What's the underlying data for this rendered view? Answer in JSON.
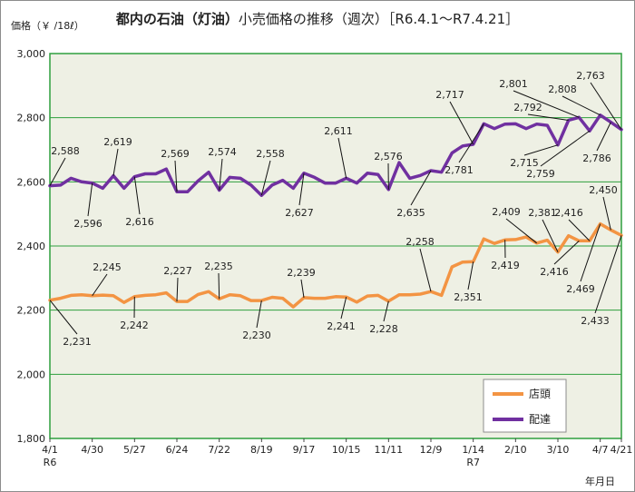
{
  "chart_data": {
    "type": "line",
    "title": "都内の石油（灯油）",
    "subtitle": "小売価格の推移（週次）［R6.4.1～R7.4.21］",
    "ylabel": "価格（￥ /18ℓ）",
    "xlabel": "年月日",
    "ylim": [
      1800,
      3000
    ],
    "yticks": [
      "3,000",
      "2,800",
      "2,600",
      "2,400",
      "2,200",
      "2,000",
      "1,800"
    ],
    "ytick_values": [
      3000,
      2800,
      2600,
      2400,
      2200,
      2000,
      1800
    ],
    "grid": true,
    "legend_position": "bottom-right",
    "xtick_labels": [
      {
        "i": 0,
        "label": "4/1",
        "sub": "R6"
      },
      {
        "i": 4,
        "label": "4/30",
        "sub": ""
      },
      {
        "i": 8,
        "label": "5/27",
        "sub": ""
      },
      {
        "i": 12,
        "label": "6/24",
        "sub": ""
      },
      {
        "i": 16,
        "label": "7/22",
        "sub": ""
      },
      {
        "i": 20,
        "label": "8/19",
        "sub": ""
      },
      {
        "i": 24,
        "label": "9/17",
        "sub": ""
      },
      {
        "i": 28,
        "label": "10/15",
        "sub": ""
      },
      {
        "i": 32,
        "label": "11/11",
        "sub": ""
      },
      {
        "i": 36,
        "label": "12/9",
        "sub": ""
      },
      {
        "i": 40,
        "label": "1/14",
        "sub": "R7"
      },
      {
        "i": 44,
        "label": "2/10",
        "sub": ""
      },
      {
        "i": 48,
        "label": "3/10",
        "sub": ""
      },
      {
        "i": 52,
        "label": "4/7",
        "sub": ""
      },
      {
        "i": 54,
        "label": "4/21",
        "sub": ""
      }
    ],
    "series": [
      {
        "name": "店頭",
        "color": "#f39443",
        "values": [
          2231,
          2237,
          2246,
          2248,
          2245,
          2247,
          2245,
          2224,
          2242,
          2246,
          2248,
          2254,
          2227,
          2227,
          2249,
          2258,
          2235,
          2248,
          2245,
          2230,
          2230,
          2240,
          2237,
          2210,
          2239,
          2237,
          2237,
          2242,
          2241,
          2225,
          2244,
          2246,
          2228,
          2248,
          2248,
          2250,
          2258,
          2246,
          2335,
          2350,
          2351,
          2422,
          2408,
          2419,
          2420,
          2428,
          2409,
          2418,
          2381,
          2432,
          2416,
          2416,
          2469,
          2450,
          2433
        ]
      },
      {
        "name": "配達",
        "color": "#7030a0",
        "values": [
          2588,
          2590,
          2611,
          2600,
          2596,
          2580,
          2619,
          2580,
          2616,
          2625,
          2625,
          2640,
          2569,
          2569,
          2603,
          2630,
          2574,
          2614,
          2611,
          2590,
          2558,
          2590,
          2605,
          2580,
          2627,
          2614,
          2596,
          2596,
          2611,
          2596,
          2627,
          2623,
          2576,
          2660,
          2611,
          2620,
          2635,
          2630,
          2690,
          2712,
          2717,
          2781,
          2766,
          2780,
          2781,
          2766,
          2780,
          2776,
          2715,
          2792,
          2801,
          2759,
          2808,
          2786,
          2763
        ]
      }
    ],
    "annotations": [
      {
        "series": 0,
        "i": 0,
        "label": "2,231"
      },
      {
        "series": 0,
        "i": 4,
        "label": "2,245"
      },
      {
        "series": 0,
        "i": 8,
        "label": "2,242"
      },
      {
        "series": 0,
        "i": 12,
        "label": "2,227"
      },
      {
        "series": 0,
        "i": 16,
        "label": "2,235"
      },
      {
        "series": 0,
        "i": 20,
        "label": "2,230"
      },
      {
        "series": 0,
        "i": 24,
        "label": "2,239"
      },
      {
        "series": 0,
        "i": 28,
        "label": "2,241"
      },
      {
        "series": 0,
        "i": 32,
        "label": "2,228"
      },
      {
        "series": 0,
        "i": 36,
        "label": "2,258"
      },
      {
        "series": 0,
        "i": 40,
        "label": "2,351"
      },
      {
        "series": 0,
        "i": 43,
        "label": "2,419"
      },
      {
        "series": 0,
        "i": 46,
        "label": "2,409"
      },
      {
        "series": 0,
        "i": 48,
        "label": "2,381"
      },
      {
        "series": 0,
        "i": 50,
        "label": "2,416"
      },
      {
        "series": 0,
        "i": 51,
        "label": "2,416"
      },
      {
        "series": 0,
        "i": 52,
        "label": "2,469"
      },
      {
        "series": 0,
        "i": 53,
        "label": "2,450"
      },
      {
        "series": 0,
        "i": 54,
        "label": "2,433"
      },
      {
        "series": 1,
        "i": 0,
        "label": "2,588"
      },
      {
        "series": 1,
        "i": 4,
        "label": "2,596"
      },
      {
        "series": 1,
        "i": 6,
        "label": "2,619"
      },
      {
        "series": 1,
        "i": 8,
        "label": "2,616"
      },
      {
        "series": 1,
        "i": 12,
        "label": "2,569"
      },
      {
        "series": 1,
        "i": 16,
        "label": "2,574"
      },
      {
        "series": 1,
        "i": 20,
        "label": "2,558"
      },
      {
        "series": 1,
        "i": 24,
        "label": "2,627"
      },
      {
        "series": 1,
        "i": 28,
        "label": "2,611"
      },
      {
        "series": 1,
        "i": 32,
        "label": "2,576"
      },
      {
        "series": 1,
        "i": 36,
        "label": "2,635"
      },
      {
        "series": 1,
        "i": 40,
        "label": "2,717"
      },
      {
        "series": 1,
        "i": 41,
        "label": "2,781"
      },
      {
        "series": 1,
        "i": 48,
        "label": "2,715"
      },
      {
        "series": 1,
        "i": 49,
        "label": "2,792"
      },
      {
        "series": 1,
        "i": 50,
        "label": "2,801"
      },
      {
        "series": 1,
        "i": 51,
        "label": "2,759"
      },
      {
        "series": 1,
        "i": 52,
        "label": "2,808"
      },
      {
        "series": 1,
        "i": 53,
        "label": "2,786"
      },
      {
        "series": 1,
        "i": 54,
        "label": "2,763"
      }
    ]
  }
}
